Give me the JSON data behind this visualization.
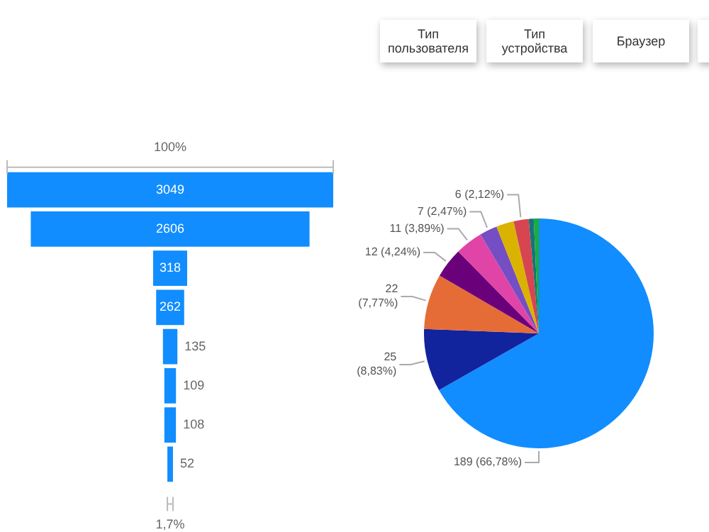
{
  "chart_data": [
    {
      "type": "other",
      "categories": [
        null,
        null,
        null,
        null,
        null,
        null,
        null,
        null
      ],
      "values": [
        3049,
        2606,
        318,
        262,
        135,
        109,
        108,
        52
      ],
      "color": "#118dff",
      "data_labels": true,
      "annotations": [
        "100%",
        "1,7%"
      ]
    },
    {
      "type": "pie",
      "categories": [
        null,
        null,
        null,
        null,
        null,
        null,
        null,
        null,
        null,
        null
      ],
      "values": [
        189,
        25,
        22,
        12,
        11,
        7,
        7,
        6,
        2,
        2
      ],
      "colors": [
        "#118dff",
        "#12239e",
        "#e66c37",
        "#6b007b",
        "#e044a7",
        "#744ec2",
        "#d9b300",
        "#d64550",
        "#197278",
        "#1aab40"
      ],
      "value_labels": [
        "189 (66,78%)",
        "25 (8,83%)",
        "22 (7,77%)",
        "12 (4,24%)",
        "11 (3,89%)",
        "7 (2,47%)",
        null,
        "6 (2,12%)",
        null,
        null
      ],
      "legend": false
    },
    {
      "type": "other",
      "annotations": [
        "Тип пользователя",
        "Тип устройства",
        "Браузер"
      ]
    }
  ]
}
